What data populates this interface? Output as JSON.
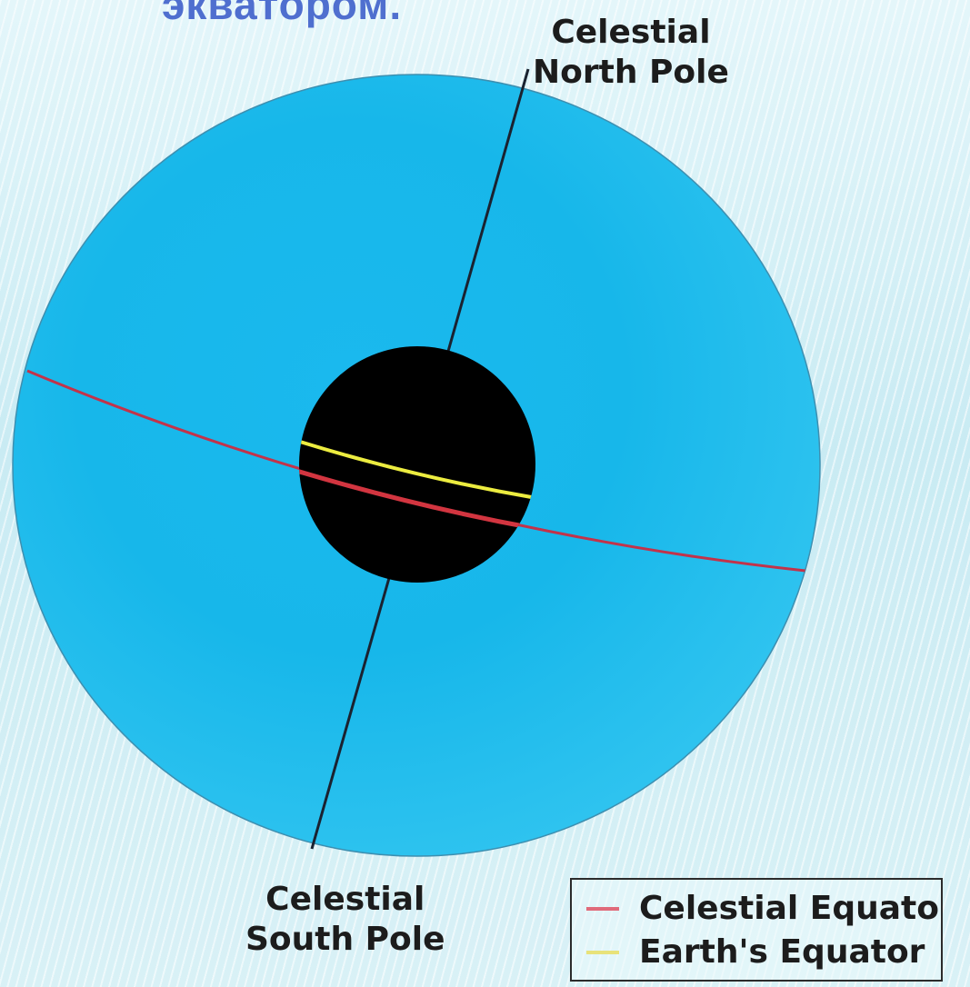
{
  "slide": {
    "title": "экватором."
  },
  "diagram": {
    "north_pole_label": [
      "Celestial",
      "North Pole"
    ],
    "south_pole_label": [
      "Celestial",
      "South Pole"
    ],
    "legend": [
      {
        "label": "Celestial Equator",
        "color": "#e06a7a"
      },
      {
        "label": "Earth's Equator",
        "color": "#e8e27a"
      }
    ],
    "colors": {
      "celestial_sphere": "#19b8ec",
      "earth": "#000000",
      "axis": "#1a2230",
      "celestial_equator": "#d23540",
      "earths_equator": "#ecec40"
    }
  }
}
